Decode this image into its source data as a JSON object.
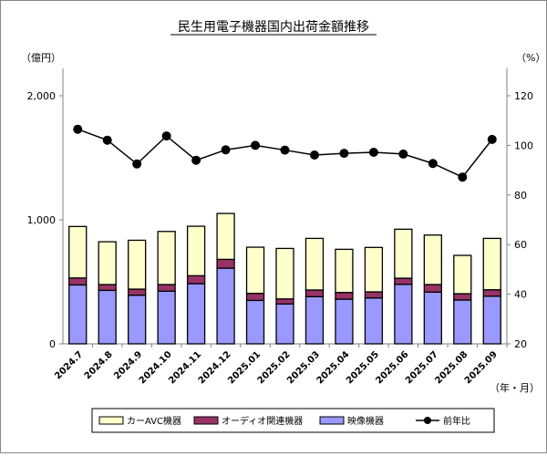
{
  "chart_data": {
    "type": "bar",
    "title": "民生用電子機器国内出荷金額推移",
    "ylabel": "（億円）",
    "y2label": "（%）",
    "xlabel": "（年・月）",
    "ylim": [
      0,
      2000
    ],
    "y2lim": [
      20,
      120
    ],
    "yticks": [
      "0",
      "1,000",
      "2,000"
    ],
    "y2ticks": [
      "20",
      "40",
      "60",
      "80",
      "100",
      "120"
    ],
    "grid": false,
    "legend_position": "bottom",
    "stacked": true,
    "categories": [
      "2024.7",
      "2024.8",
      "2024.9",
      "2024.10",
      "2024.11",
      "2024.12",
      "2025.01",
      "2025.02",
      "2025.03",
      "2025.04",
      "2025.05",
      "2025.06",
      "2025.07",
      "2025.08",
      "2025.09"
    ],
    "series": [
      {
        "name": "映像機器",
        "kind": "bar",
        "axis": "left",
        "color": "#9999ff",
        "values": [
          475,
          431,
          392,
          424,
          485,
          610,
          350,
          321,
          380,
          360,
          370,
          480,
          417,
          353,
          384
        ]
      },
      {
        "name": "オーディオ関連機器",
        "kind": "bar",
        "axis": "left",
        "color": "#993366",
        "values": [
          56,
          47,
          49,
          54,
          64,
          71,
          57,
          41,
          54,
          54,
          49,
          49,
          61,
          51,
          52
        ]
      },
      {
        "name": "カーAVC機器",
        "kind": "bar",
        "axis": "left",
        "color": "#ffffcc",
        "values": [
          415,
          345,
          394,
          428,
          399,
          370,
          372,
          407,
          416,
          348,
          358,
          395,
          399,
          309,
          414
        ]
      },
      {
        "name": "前年比",
        "kind": "line",
        "axis": "right",
        "color": "#000000",
        "values": [
          106.5,
          102.1,
          92.5,
          103.8,
          94.0,
          98.2,
          100.0,
          98.1,
          96.1,
          96.8,
          97.2,
          96.5,
          92.7,
          87.2,
          102.4
        ]
      }
    ],
    "legend_order": [
      "カーAVC機器",
      "オーディオ関連機器",
      "映像機器",
      "前年比"
    ]
  }
}
